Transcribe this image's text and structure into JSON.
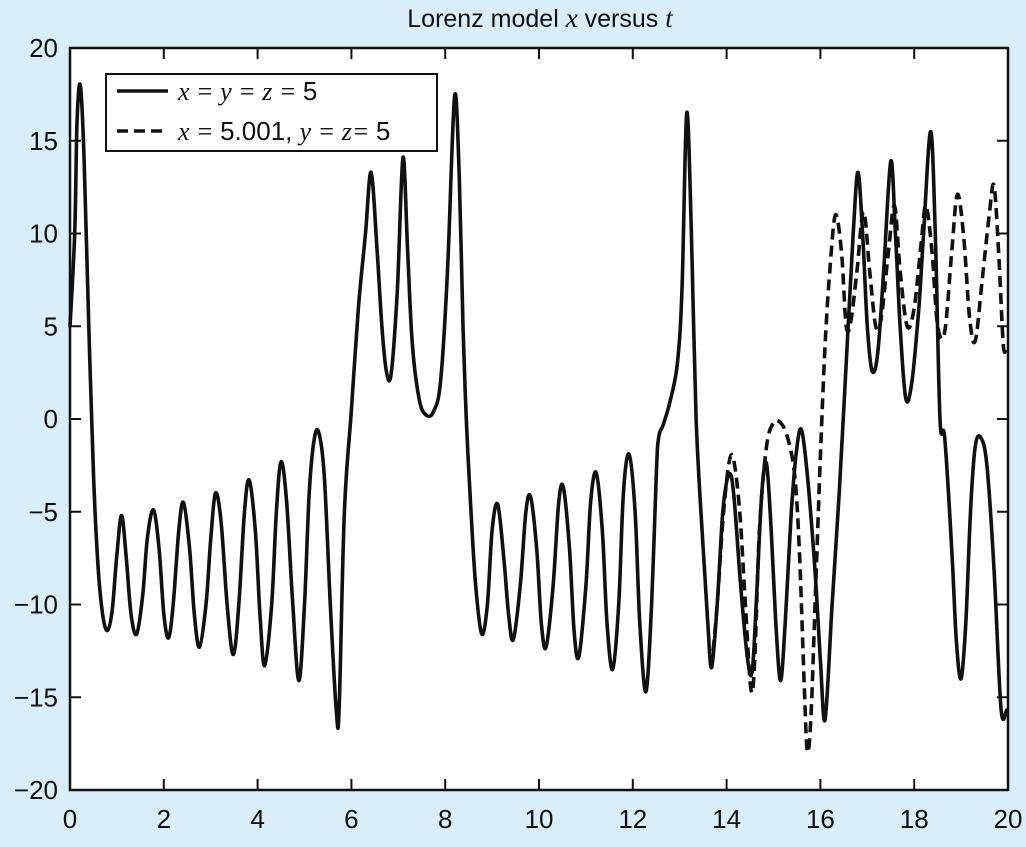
{
  "chart_data": {
    "type": "line",
    "title_prefix": "Lorenz model ",
    "title_var_x": "x",
    "title_mid": " versus ",
    "title_var_t": "t",
    "xlabel": "",
    "ylabel": "",
    "xlim": [
      0,
      20
    ],
    "ylim": [
      -20,
      20
    ],
    "xticks": [
      0,
      2,
      4,
      6,
      8,
      10,
      12,
      14,
      16,
      18,
      20
    ],
    "yticks": [
      -20,
      -15,
      -10,
      -5,
      0,
      5,
      10,
      15,
      20
    ],
    "grid": false,
    "legend_position": "top-left",
    "colors": {
      "background": "#d9eef8",
      "plot_area": "#ffffff",
      "line": "#111111"
    },
    "legend": {
      "solid": {
        "pieces": [
          {
            "text": "x",
            "style": "italic"
          },
          {
            "text": " = ",
            "style": "italic"
          },
          {
            "text": "y",
            "style": "italic"
          },
          {
            "text": " = ",
            "style": "italic"
          },
          {
            "text": "z",
            "style": "italic"
          },
          {
            "text": " = ",
            "style": "italic"
          },
          {
            "text": "5",
            "style": "upright"
          }
        ]
      },
      "dashed": {
        "pieces": [
          {
            "text": "x",
            "style": "italic"
          },
          {
            "text": " = ",
            "style": "italic"
          },
          {
            "text": "5.001, ",
            "style": "upright"
          },
          {
            "text": "y",
            "style": "italic"
          },
          {
            "text": " = ",
            "style": "italic"
          },
          {
            "text": "z",
            "style": "italic"
          },
          {
            "text": "= ",
            "style": "italic"
          },
          {
            "text": "5",
            "style": "upright"
          }
        ]
      }
    },
    "series": [
      {
        "key": "solid",
        "style": "solid",
        "points": [
          [
            0.0,
            5.0
          ],
          [
            0.1,
            10.0
          ],
          [
            0.15,
            16.0
          ],
          [
            0.22,
            18.0
          ],
          [
            0.3,
            14.0
          ],
          [
            0.4,
            5.0
          ],
          [
            0.5,
            -3.0
          ],
          [
            0.6,
            -8.0
          ],
          [
            0.7,
            -10.6
          ],
          [
            0.8,
            -11.4
          ],
          [
            0.9,
            -10.3
          ],
          [
            1.0,
            -7.3
          ],
          [
            1.1,
            -5.2
          ],
          [
            1.2,
            -7.5
          ],
          [
            1.3,
            -10.5
          ],
          [
            1.42,
            -11.6
          ],
          [
            1.55,
            -9.5
          ],
          [
            1.65,
            -6.4
          ],
          [
            1.78,
            -4.9
          ],
          [
            1.9,
            -7.0
          ],
          [
            2.0,
            -10.5
          ],
          [
            2.1,
            -11.8
          ],
          [
            2.2,
            -10.0
          ],
          [
            2.32,
            -6.0
          ],
          [
            2.42,
            -4.5
          ],
          [
            2.55,
            -7.0
          ],
          [
            2.65,
            -10.5
          ],
          [
            2.76,
            -12.3
          ],
          [
            2.9,
            -10.0
          ],
          [
            3.0,
            -6.5
          ],
          [
            3.1,
            -4.0
          ],
          [
            3.22,
            -5.5
          ],
          [
            3.35,
            -10.0
          ],
          [
            3.48,
            -12.7
          ],
          [
            3.6,
            -10.0
          ],
          [
            3.72,
            -5.0
          ],
          [
            3.82,
            -3.3
          ],
          [
            3.95,
            -6.0
          ],
          [
            4.05,
            -10.5
          ],
          [
            4.15,
            -13.3
          ],
          [
            4.3,
            -10.0
          ],
          [
            4.4,
            -5.0
          ],
          [
            4.5,
            -2.3
          ],
          [
            4.62,
            -4.5
          ],
          [
            4.75,
            -10.0
          ],
          [
            4.88,
            -14.1
          ],
          [
            5.0,
            -10.0
          ],
          [
            5.1,
            -4.0
          ],
          [
            5.2,
            -1.2
          ],
          [
            5.3,
            -0.7
          ],
          [
            5.42,
            -3.0
          ],
          [
            5.55,
            -10.0
          ],
          [
            5.68,
            -15.8
          ],
          [
            5.74,
            -15.5
          ],
          [
            5.85,
            -5.0
          ],
          [
            6.0,
            0.5
          ],
          [
            6.15,
            6.0
          ],
          [
            6.3,
            10.0
          ],
          [
            6.42,
            13.3
          ],
          [
            6.55,
            9.0
          ],
          [
            6.65,
            5.0
          ],
          [
            6.75,
            2.5
          ],
          [
            6.85,
            2.5
          ],
          [
            6.98,
            7.0
          ],
          [
            7.1,
            14.1
          ],
          [
            7.2,
            9.0
          ],
          [
            7.3,
            4.0
          ],
          [
            7.45,
            1.0
          ],
          [
            7.6,
            0.2
          ],
          [
            7.75,
            0.4
          ],
          [
            7.9,
            2.0
          ],
          [
            8.05,
            8.0
          ],
          [
            8.2,
            17.4
          ],
          [
            8.3,
            13.0
          ],
          [
            8.38,
            5.0
          ],
          [
            8.45,
            0.0
          ],
          [
            8.55,
            -5.0
          ],
          [
            8.65,
            -9.0
          ],
          [
            8.78,
            -11.6
          ],
          [
            8.9,
            -10.0
          ],
          [
            9.0,
            -6.0
          ],
          [
            9.12,
            -4.6
          ],
          [
            9.25,
            -7.5
          ],
          [
            9.35,
            -10.5
          ],
          [
            9.45,
            -11.9
          ],
          [
            9.6,
            -9.0
          ],
          [
            9.72,
            -5.0
          ],
          [
            9.82,
            -4.2
          ],
          [
            9.95,
            -7.0
          ],
          [
            10.05,
            -11.0
          ],
          [
            10.15,
            -12.3
          ],
          [
            10.3,
            -9.0
          ],
          [
            10.42,
            -4.5
          ],
          [
            10.52,
            -3.7
          ],
          [
            10.65,
            -7.0
          ],
          [
            10.75,
            -11.5
          ],
          [
            10.85,
            -12.8
          ],
          [
            11.0,
            -9.0
          ],
          [
            11.1,
            -4.5
          ],
          [
            11.22,
            -2.9
          ],
          [
            11.35,
            -6.0
          ],
          [
            11.45,
            -11.0
          ],
          [
            11.57,
            -13.5
          ],
          [
            11.7,
            -10.0
          ],
          [
            11.8,
            -4.0
          ],
          [
            11.92,
            -1.9
          ],
          [
            12.05,
            -5.0
          ],
          [
            12.15,
            -11.0
          ],
          [
            12.28,
            -14.7
          ],
          [
            12.4,
            -10.0
          ],
          [
            12.5,
            -3.0
          ],
          [
            12.55,
            -1.0
          ],
          [
            12.65,
            -0.3
          ],
          [
            12.8,
            1.0
          ],
          [
            12.95,
            3.0
          ],
          [
            13.05,
            7.0
          ],
          [
            13.15,
            16.5
          ],
          [
            13.25,
            10.0
          ],
          [
            13.35,
            0.0
          ],
          [
            13.5,
            -7.0
          ],
          [
            13.6,
            -11.0
          ],
          [
            13.68,
            -13.4
          ],
          [
            13.8,
            -10.0
          ],
          [
            13.92,
            -5.0
          ],
          [
            14.05,
            -3.0
          ],
          [
            14.15,
            -4.0
          ],
          [
            14.3,
            -9.0
          ],
          [
            14.45,
            -13.0
          ],
          [
            14.55,
            -13.5
          ],
          [
            14.65,
            -9.0
          ],
          [
            14.75,
            -4.0
          ],
          [
            14.85,
            -2.4
          ],
          [
            14.95,
            -6.0
          ],
          [
            15.05,
            -11.0
          ],
          [
            15.15,
            -14.1
          ],
          [
            15.25,
            -11.0
          ],
          [
            15.38,
            -5.0
          ],
          [
            15.5,
            -1.5
          ],
          [
            15.6,
            -0.6
          ],
          [
            15.72,
            -3.0
          ],
          [
            15.88,
            -8.0
          ],
          [
            16.0,
            -13.0
          ],
          [
            16.1,
            -16.2
          ],
          [
            16.25,
            -10.0
          ],
          [
            16.4,
            -4.0
          ],
          [
            16.55,
            3.0
          ],
          [
            16.7,
            10.0
          ],
          [
            16.8,
            13.3
          ],
          [
            16.9,
            10.0
          ],
          [
            17.0,
            5.0
          ],
          [
            17.1,
            2.6
          ],
          [
            17.22,
            3.5
          ],
          [
            17.35,
            8.0
          ],
          [
            17.5,
            13.9
          ],
          [
            17.6,
            10.0
          ],
          [
            17.7,
            5.0
          ],
          [
            17.82,
            1.1
          ],
          [
            17.95,
            2.0
          ],
          [
            18.1,
            6.0
          ],
          [
            18.2,
            10.0
          ],
          [
            18.35,
            15.5
          ],
          [
            18.45,
            10.0
          ],
          [
            18.55,
            0.0
          ],
          [
            18.65,
            -1.0
          ],
          [
            18.8,
            -7.0
          ],
          [
            18.9,
            -12.0
          ],
          [
            19.0,
            -14.0
          ],
          [
            19.1,
            -11.0
          ],
          [
            19.2,
            -5.0
          ],
          [
            19.3,
            -1.5
          ],
          [
            19.42,
            -1.0
          ],
          [
            19.55,
            -2.5
          ],
          [
            19.7,
            -8.0
          ],
          [
            19.85,
            -15.6
          ],
          [
            19.97,
            -15.7
          ]
        ]
      },
      {
        "key": "dashed",
        "style": "dashed",
        "points": [
          [
            13.68,
            -13.4
          ],
          [
            13.8,
            -10.0
          ],
          [
            13.92,
            -5.5
          ],
          [
            14.05,
            -2.4
          ],
          [
            14.15,
            -2.2
          ],
          [
            14.28,
            -5.0
          ],
          [
            14.4,
            -10.0
          ],
          [
            14.52,
            -14.6
          ],
          [
            14.6,
            -13.0
          ],
          [
            14.7,
            -6.0
          ],
          [
            14.85,
            -1.5
          ],
          [
            15.0,
            -0.2
          ],
          [
            15.15,
            -0.2
          ],
          [
            15.3,
            -1.0
          ],
          [
            15.45,
            -3.0
          ],
          [
            15.55,
            -7.0
          ],
          [
            15.65,
            -14.0
          ],
          [
            15.72,
            -17.9
          ],
          [
            15.8,
            -16.0
          ],
          [
            15.9,
            -9.0
          ],
          [
            16.0,
            -2.0
          ],
          [
            16.1,
            4.0
          ],
          [
            16.2,
            8.0
          ],
          [
            16.32,
            11.0
          ],
          [
            16.45,
            9.0
          ],
          [
            16.55,
            5.0
          ],
          [
            16.65,
            5.3
          ],
          [
            16.78,
            8.0
          ],
          [
            16.92,
            11.2
          ],
          [
            17.05,
            8.0
          ],
          [
            17.18,
            5.0
          ],
          [
            17.3,
            5.5
          ],
          [
            17.45,
            9.0
          ],
          [
            17.58,
            11.5
          ],
          [
            17.7,
            8.0
          ],
          [
            17.85,
            5.0
          ],
          [
            18.0,
            6.0
          ],
          [
            18.15,
            9.5
          ],
          [
            18.25,
            11.5
          ],
          [
            18.38,
            9.0
          ],
          [
            18.5,
            5.0
          ],
          [
            18.65,
            4.7
          ],
          [
            18.8,
            9.0
          ],
          [
            18.92,
            12.1
          ],
          [
            19.05,
            10.0
          ],
          [
            19.18,
            5.5
          ],
          [
            19.3,
            4.2
          ],
          [
            19.45,
            7.5
          ],
          [
            19.6,
            11.0
          ],
          [
            19.7,
            12.6
          ],
          [
            19.8,
            9.0
          ],
          [
            19.9,
            4.0
          ],
          [
            19.97,
            3.9
          ]
        ]
      }
    ]
  }
}
